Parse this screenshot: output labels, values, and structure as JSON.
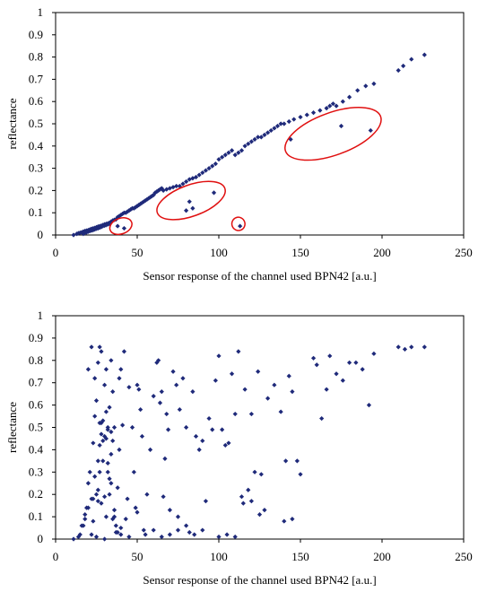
{
  "colors": {
    "points": "#1f2a7a",
    "annotation": "#e01010",
    "axis": "#000000"
  },
  "chart_data": [
    {
      "type": "scatter",
      "xlabel": "Sensor response of the channel used BPN42 [a.u.]",
      "ylabel": "reflectance",
      "xlim": [
        0,
        250
      ],
      "ylim": [
        0,
        1
      ],
      "xticks": [
        "0",
        "50",
        "100",
        "150",
        "200",
        "250"
      ],
      "yticks": [
        "0",
        "0.1",
        "0.2",
        "0.3",
        "0.4",
        "0.5",
        "0.6",
        "0.7",
        "0.8",
        "0.9",
        "1"
      ],
      "grid": false,
      "annotations": [
        {
          "shape": "ellipse",
          "cx": 40,
          "cy": 0.04,
          "rx": 7,
          "ry": 0.035,
          "color": "#e01010"
        },
        {
          "shape": "ellipse",
          "cx": 83,
          "cy": 0.155,
          "rx": 22,
          "ry": 0.07,
          "color": "#e01010"
        },
        {
          "shape": "ellipse",
          "cx": 112,
          "cy": 0.05,
          "rx": 4,
          "ry": 0.03,
          "color": "#e01010"
        },
        {
          "shape": "ellipse",
          "cx": 170,
          "cy": 0.455,
          "rx": 31,
          "ry": 0.095,
          "color": "#e01010"
        }
      ],
      "series": [
        {
          "x": [
            11,
            13,
            14,
            15,
            16,
            17,
            17,
            18,
            18,
            19,
            19,
            20,
            20,
            21,
            21,
            22,
            22,
            23,
            23,
            24,
            24,
            25,
            25,
            26,
            26,
            27,
            27,
            28,
            28,
            29,
            29,
            30,
            30,
            31,
            31,
            32,
            32,
            33,
            33,
            34,
            34,
            35,
            36,
            37,
            38,
            39,
            40,
            41,
            42,
            43,
            44,
            45,
            46,
            47,
            48,
            49,
            50,
            51,
            52,
            53,
            54,
            55,
            56,
            57,
            58,
            59,
            60,
            61,
            62,
            63,
            64,
            65,
            66,
            68,
            70,
            72,
            74,
            76,
            78,
            80,
            82,
            84,
            86,
            88,
            90,
            92,
            94,
            96,
            98,
            100,
            102,
            104,
            106,
            108,
            110,
            112,
            114,
            116,
            118,
            120,
            122,
            124,
            126,
            128,
            130,
            132,
            134,
            136,
            138,
            140,
            143,
            146,
            150,
            154,
            158,
            162,
            166,
            168,
            170,
            172,
            176,
            180,
            185,
            190,
            195,
            210,
            213,
            218,
            226,
            38,
            42,
            80,
            82,
            84,
            97,
            113,
            144,
            175,
            193
          ],
          "y": [
            0.0,
            0.005,
            0.008,
            0.01,
            0.012,
            0.015,
            0.005,
            0.018,
            0.01,
            0.02,
            0.012,
            0.022,
            0.015,
            0.025,
            0.018,
            0.028,
            0.02,
            0.03,
            0.022,
            0.032,
            0.025,
            0.035,
            0.028,
            0.038,
            0.03,
            0.04,
            0.033,
            0.042,
            0.036,
            0.045,
            0.04,
            0.048,
            0.042,
            0.05,
            0.045,
            0.052,
            0.048,
            0.055,
            0.05,
            0.058,
            0.06,
            0.065,
            0.068,
            0.07,
            0.08,
            0.085,
            0.09,
            0.095,
            0.1,
            0.1,
            0.105,
            0.11,
            0.115,
            0.12,
            0.12,
            0.125,
            0.13,
            0.135,
            0.14,
            0.145,
            0.15,
            0.155,
            0.16,
            0.165,
            0.17,
            0.175,
            0.18,
            0.19,
            0.195,
            0.2,
            0.205,
            0.21,
            0.2,
            0.205,
            0.21,
            0.215,
            0.22,
            0.22,
            0.23,
            0.24,
            0.25,
            0.255,
            0.26,
            0.27,
            0.28,
            0.29,
            0.3,
            0.31,
            0.32,
            0.34,
            0.35,
            0.36,
            0.37,
            0.38,
            0.36,
            0.37,
            0.38,
            0.4,
            0.41,
            0.42,
            0.43,
            0.44,
            0.44,
            0.45,
            0.46,
            0.47,
            0.48,
            0.49,
            0.5,
            0.5,
            0.51,
            0.52,
            0.53,
            0.54,
            0.55,
            0.56,
            0.57,
            0.58,
            0.59,
            0.58,
            0.6,
            0.62,
            0.65,
            0.67,
            0.68,
            0.74,
            0.76,
            0.79,
            0.81,
            0.04,
            0.03,
            0.11,
            0.15,
            0.12,
            0.19,
            0.04,
            0.43,
            0.49,
            0.47
          ]
        }
      ]
    },
    {
      "type": "scatter",
      "xlabel": "Sensor response of the channel used BPN42 [a.u.]",
      "ylabel": "reflectance",
      "xlim": [
        0,
        250
      ],
      "ylim": [
        0,
        1
      ],
      "xticks": [
        "0",
        "50",
        "100",
        "150",
        "200",
        "250"
      ],
      "yticks": [
        "0",
        "0.1",
        "0.2",
        "0.3",
        "0.4",
        "0.5",
        "0.6",
        "0.7",
        "0.8",
        "0.9",
        "1"
      ],
      "grid": false,
      "series": [
        {
          "x": [
            11,
            15,
            17,
            18,
            19,
            20,
            21,
            22,
            23,
            23,
            24,
            25,
            25,
            26,
            26,
            27,
            27,
            28,
            28,
            29,
            29,
            30,
            30,
            31,
            31,
            32,
            32,
            33,
            33,
            34,
            34,
            35,
            36,
            37,
            38,
            39,
            40,
            41,
            42,
            43,
            44,
            45,
            47,
            48,
            49,
            50,
            51,
            52,
            53,
            54,
            56,
            58,
            60,
            62,
            63,
            64,
            65,
            66,
            67,
            68,
            69,
            70,
            72,
            74,
            75,
            76,
            78,
            80,
            82,
            84,
            86,
            88,
            90,
            92,
            94,
            96,
            98,
            100,
            102,
            104,
            106,
            108,
            110,
            112,
            114,
            116,
            118,
            120,
            122,
            124,
            126,
            128,
            130,
            134,
            138,
            141,
            143,
            145,
            148,
            150,
            158,
            160,
            163,
            166,
            168,
            172,
            176,
            180,
            184,
            188,
            192,
            195,
            210,
            214,
            218,
            226,
            14,
            16,
            18,
            20,
            22,
            24,
            26,
            28,
            30,
            32,
            34,
            36,
            20,
            22,
            24,
            26,
            28,
            30,
            32,
            34,
            36,
            38,
            40,
            25,
            27,
            29,
            31,
            33,
            35,
            37,
            40,
            45,
            50,
            55,
            60,
            65,
            70,
            75,
            80,
            85,
            90,
            100,
            105,
            110,
            115,
            120,
            125,
            140,
            145,
            23,
            27,
            31,
            35,
            39
          ],
          "y": [
            0.0,
            0.02,
            0.06,
            0.11,
            0.14,
            0.25,
            0.3,
            0.18,
            0.43,
            0.08,
            0.55,
            0.2,
            0.62,
            0.17,
            0.79,
            0.3,
            0.86,
            0.47,
            0.84,
            0.35,
            0.53,
            0.19,
            0.69,
            0.45,
            0.76,
            0.3,
            0.5,
            0.2,
            0.59,
            0.38,
            0.8,
            0.44,
            0.13,
            0.06,
            0.23,
            0.72,
            0.76,
            0.51,
            0.84,
            0.09,
            0.18,
            0.68,
            0.5,
            0.3,
            0.14,
            0.69,
            0.67,
            0.58,
            0.46,
            0.04,
            0.2,
            0.4,
            0.64,
            0.79,
            0.8,
            0.61,
            0.66,
            0.19,
            0.36,
            0.56,
            0.49,
            0.13,
            0.75,
            0.69,
            0.1,
            0.58,
            0.72,
            0.5,
            0.03,
            0.66,
            0.46,
            0.4,
            0.44,
            0.17,
            0.54,
            0.49,
            0.71,
            0.82,
            0.49,
            0.42,
            0.43,
            0.74,
            0.56,
            0.84,
            0.19,
            0.67,
            0.22,
            0.56,
            0.3,
            0.75,
            0.29,
            0.13,
            0.63,
            0.69,
            0.57,
            0.35,
            0.73,
            0.66,
            0.35,
            0.29,
            0.81,
            0.78,
            0.54,
            0.67,
            0.82,
            0.74,
            0.71,
            0.79,
            0.79,
            0.76,
            0.6,
            0.83,
            0.86,
            0.85,
            0.86,
            0.86,
            0.01,
            0.06,
            0.09,
            0.14,
            0.02,
            0.28,
            0.35,
            0.52,
            0.46,
            0.49,
            0.48,
            0.5,
            0.76,
            0.86,
            0.72,
            0.22,
            0.16,
            0.0,
            0.34,
            0.25,
            0.1,
            0.03,
            0.05,
            0.01,
            0.52,
            0.44,
            0.1,
            0.27,
            0.09,
            0.03,
            0.02,
            0.01,
            0.12,
            0.02,
            0.04,
            0.01,
            0.02,
            0.04,
            0.06,
            0.02,
            0.04,
            0.01,
            0.02,
            0.01,
            0.16,
            0.17,
            0.11,
            0.08,
            0.09,
            0.18,
            0.42,
            0.57,
            0.66,
            0.4
          ]
        }
      ]
    }
  ]
}
